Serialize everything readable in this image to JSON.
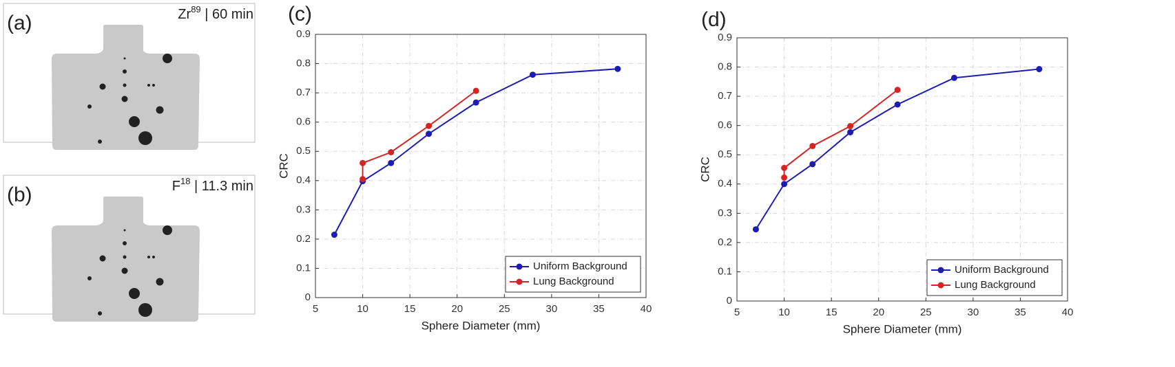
{
  "images": [
    {
      "label": "(a)",
      "isotope": "Zr",
      "mass": "89",
      "caption": " | 60 min"
    },
    {
      "label": "(b)",
      "isotope": "F",
      "mass": "18",
      "caption": " | 11.3 min"
    }
  ],
  "chart_data": [
    {
      "type": "line",
      "label": "(c)",
      "xlabel": "Sphere Diameter (mm)",
      "ylabel": "CRC",
      "xlim": [
        5,
        40
      ],
      "xticks": [
        5,
        10,
        15,
        20,
        25,
        30,
        35,
        40
      ],
      "ylim": [
        0,
        0.9
      ],
      "yticks": [
        0,
        0.1,
        0.2,
        0.3,
        0.4,
        0.5,
        0.6,
        0.7,
        0.8,
        0.9
      ],
      "grid": true,
      "legend": "lower right",
      "series": [
        {
          "name": "Uniform Background",
          "color": "#1c1cb4",
          "x": [
            7,
            10,
            13,
            17,
            22,
            28,
            37
          ],
          "values": [
            0.215,
            0.398,
            0.46,
            0.56,
            0.667,
            0.762,
            0.782
          ]
        },
        {
          "name": "Lung Background",
          "color": "#d42424",
          "x": [
            10,
            10,
            13,
            17,
            22
          ],
          "values": [
            0.405,
            0.46,
            0.497,
            0.587,
            0.707
          ]
        }
      ]
    },
    {
      "type": "line",
      "label": "(d)",
      "xlabel": "Sphere Diameter (mm)",
      "ylabel": "CRC",
      "xlim": [
        5,
        40
      ],
      "xticks": [
        5,
        10,
        15,
        20,
        25,
        30,
        35,
        40
      ],
      "ylim": [
        0,
        0.9
      ],
      "yticks": [
        0,
        0.1,
        0.2,
        0.3,
        0.4,
        0.5,
        0.6,
        0.7,
        0.8,
        0.9
      ],
      "grid": true,
      "legend": "lower right",
      "series": [
        {
          "name": "Uniform Background",
          "color": "#1c1cb4",
          "x": [
            7,
            10,
            13,
            17,
            22,
            28,
            37
          ],
          "values": [
            0.245,
            0.4,
            0.468,
            0.577,
            0.672,
            0.763,
            0.793
          ]
        },
        {
          "name": "Lung Background",
          "color": "#d42424",
          "x": [
            10,
            10,
            13,
            17,
            22
          ],
          "values": [
            0.422,
            0.455,
            0.53,
            0.598,
            0.722
          ]
        }
      ]
    }
  ]
}
